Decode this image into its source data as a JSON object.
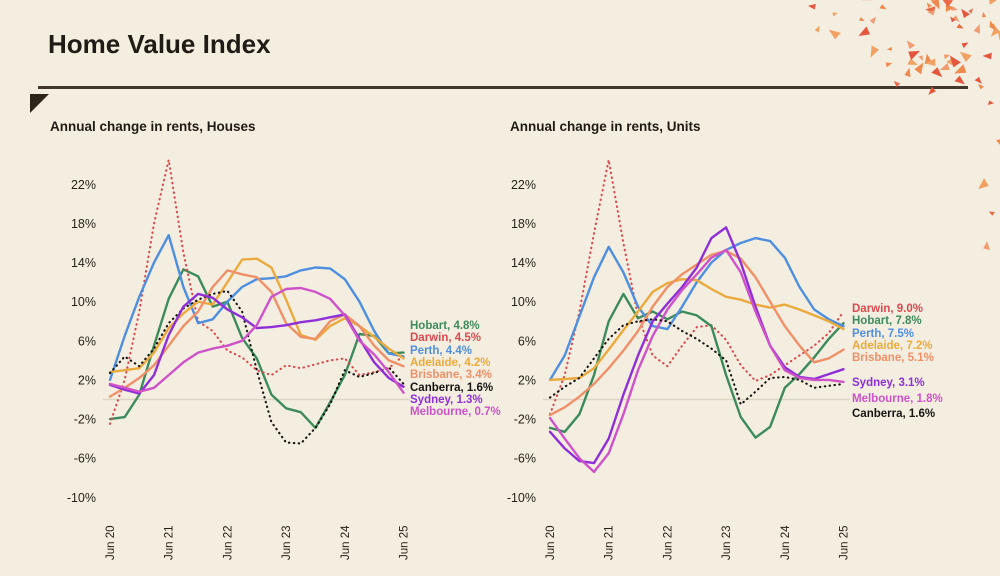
{
  "page": {
    "title": "Home Value Index",
    "background_color": "#f4eee0",
    "accent_rule_color": "#42392c",
    "decor_triangle_colors": [
      "#e4573f",
      "#ef8a4e",
      "#f1a263",
      "#eb6a47",
      "#f19b71"
    ]
  },
  "chart_data": [
    {
      "type": "line",
      "title": "Annual change in rents, Houses",
      "xlabel": "",
      "ylabel": "",
      "ylim": [
        -10.5,
        25.5
      ],
      "yticks": [
        22,
        18,
        14,
        10,
        6,
        2,
        -2,
        -6,
        -10
      ],
      "ytick_suffix": "%",
      "xtick_labels": [
        "Jun 20",
        "Jun 21",
        "Jun 22",
        "Jun 23",
        "Jun 24",
        "Jun 25"
      ],
      "x": [
        "Jun 20",
        "Sep 20",
        "Dec 20",
        "Mar 21",
        "Jun 21",
        "Sep 21",
        "Dec 21",
        "Mar 22",
        "Jun 22",
        "Sep 22",
        "Dec 22",
        "Mar 23",
        "Jun 23",
        "Sep 23",
        "Dec 23",
        "Mar 24",
        "Jun 24",
        "Sep 24",
        "Dec 24",
        "Mar 25",
        "Jun 25"
      ],
      "grid": false,
      "zero_line": true,
      "legend_position": "right-of-plot",
      "series": [
        {
          "name": "Hobart",
          "legend": "Hobart, 4.8%",
          "final_value": 4.8,
          "color": "#3d8b5d",
          "dashed": false,
          "legend_group": 0,
          "values": [
            -2.0,
            -1.8,
            0.5,
            5.5,
            10.3,
            13.3,
            12.6,
            9.5,
            10.0,
            6.3,
            4.2,
            0.5,
            -0.9,
            -1.3,
            -2.9,
            -0.3,
            2.5,
            6.7,
            6.5,
            4.7,
            4.8
          ]
        },
        {
          "name": "Darwin",
          "legend": "Darwin, 4.5%",
          "final_value": 4.5,
          "color": "#d94a50",
          "dashed": true,
          "legend_group": 0,
          "values": [
            -2.5,
            2.0,
            9.0,
            18.0,
            24.5,
            15.0,
            8.0,
            7.0,
            5.0,
            4.3,
            3.0,
            2.5,
            3.5,
            3.2,
            3.6,
            4.0,
            4.2,
            2.5,
            2.8,
            3.2,
            4.5
          ]
        },
        {
          "name": "Perth",
          "legend": "Perth, 4.4%",
          "final_value": 4.4,
          "color": "#4e8fdf",
          "dashed": false,
          "legend_group": 0,
          "values": [
            2.0,
            6.5,
            10.5,
            14.0,
            16.8,
            11.5,
            7.8,
            8.2,
            10.0,
            11.5,
            12.3,
            12.4,
            12.6,
            13.2,
            13.5,
            13.4,
            12.3,
            10.0,
            7.0,
            4.7,
            4.4
          ]
        },
        {
          "name": "Adelaide",
          "legend": "Adelaide, 4.2%",
          "final_value": 4.2,
          "color": "#eaaa3e",
          "dashed": false,
          "legend_group": 0,
          "values": [
            2.8,
            3.0,
            3.2,
            4.8,
            7.3,
            8.8,
            10.0,
            9.7,
            12.0,
            14.3,
            14.4,
            13.5,
            10.2,
            6.6,
            6.1,
            7.5,
            8.3,
            7.5,
            6.4,
            5.2,
            4.2
          ]
        },
        {
          "name": "Brisbane",
          "legend": "Brisbane, 3.4%",
          "final_value": 3.4,
          "color": "#f09068",
          "dashed": false,
          "legend_group": 0,
          "values": [
            0.3,
            1.2,
            2.2,
            3.5,
            5.5,
            7.5,
            9.0,
            11.5,
            13.2,
            12.8,
            12.5,
            11.0,
            7.8,
            6.4,
            6.2,
            8.0,
            8.7,
            7.5,
            5.5,
            4.0,
            3.4
          ]
        },
        {
          "name": "Canberra",
          "legend": "Canberra, 1.6%",
          "final_value": 1.6,
          "color": "#171412",
          "dashed": true,
          "legend_group": 0,
          "values": [
            2.7,
            4.4,
            3.4,
            5.2,
            7.8,
            9.3,
            10.2,
            10.8,
            11.1,
            9.0,
            3.0,
            -2.3,
            -4.4,
            -4.5,
            -2.9,
            -0.5,
            3.0,
            2.3,
            2.7,
            3.3,
            1.6
          ]
        },
        {
          "name": "Sydney",
          "legend": "Sydney, 1.3%",
          "final_value": 1.3,
          "color": "#8e2fd8",
          "dashed": false,
          "legend_group": 0,
          "values": [
            1.5,
            1.0,
            0.6,
            2.5,
            6.6,
            9.5,
            10.8,
            10.4,
            9.2,
            8.4,
            7.3,
            7.4,
            7.6,
            7.9,
            8.1,
            8.4,
            8.7,
            6.2,
            3.8,
            2.2,
            1.3
          ]
        },
        {
          "name": "Melbourne",
          "legend": "Melbourne, 0.7%",
          "final_value": 0.7,
          "color": "#ce52c8",
          "dashed": false,
          "legend_group": 0,
          "values": [
            1.6,
            1.2,
            0.8,
            1.2,
            2.5,
            3.8,
            4.8,
            5.2,
            5.5,
            6.0,
            7.6,
            10.5,
            11.3,
            11.4,
            11.0,
            10.3,
            8.6,
            6.0,
            4.6,
            2.8,
            0.7
          ]
        }
      ]
    },
    {
      "type": "line",
      "title": "Annual change in rents, Units",
      "xlabel": "",
      "ylabel": "",
      "ylim": [
        -10.5,
        25.5
      ],
      "yticks": [
        22,
        18,
        14,
        10,
        6,
        2,
        -2,
        -6,
        -10
      ],
      "ytick_suffix": "%",
      "xtick_labels": [
        "Jun 20",
        "Jun 21",
        "Jun 22",
        "Jun 23",
        "Jun 24",
        "Jun 25"
      ],
      "x": [
        "Jun 20",
        "Sep 20",
        "Dec 20",
        "Mar 21",
        "Jun 21",
        "Sep 21",
        "Dec 21",
        "Mar 22",
        "Jun 22",
        "Sep 22",
        "Dec 22",
        "Mar 23",
        "Jun 23",
        "Sep 23",
        "Dec 23",
        "Mar 24",
        "Jun 24",
        "Sep 24",
        "Dec 24",
        "Mar 25",
        "Jun 25"
      ],
      "grid": false,
      "zero_line": true,
      "legend_position": "right-of-plot",
      "series": [
        {
          "name": "Darwin",
          "legend": "Darwin, 9.0%",
          "final_value": 9.0,
          "color": "#d94a50",
          "dashed": true,
          "legend_group": 0,
          "values": [
            -1.5,
            2.5,
            9.0,
            17.0,
            24.5,
            16.0,
            8.5,
            4.5,
            3.4,
            5.5,
            7.4,
            7.6,
            6.1,
            3.5,
            1.9,
            2.5,
            3.5,
            4.5,
            5.5,
            6.8,
            9.0
          ]
        },
        {
          "name": "Hobart",
          "legend": "Hobart, 7.8%",
          "final_value": 7.8,
          "color": "#3d8b5d",
          "dashed": false,
          "legend_group": 0,
          "values": [
            -2.9,
            -3.3,
            -1.5,
            2.5,
            8.0,
            10.8,
            8.3,
            9.0,
            8.2,
            9.0,
            8.6,
            7.5,
            2.5,
            -1.8,
            -3.9,
            -2.8,
            1.2,
            2.6,
            4.3,
            6.2,
            7.8
          ]
        },
        {
          "name": "Perth",
          "legend": "Perth, 7.5%",
          "final_value": 7.5,
          "color": "#4e8fdf",
          "dashed": false,
          "legend_group": 0,
          "values": [
            2.0,
            4.5,
            8.5,
            12.5,
            15.6,
            13.0,
            9.5,
            7.5,
            7.2,
            9.5,
            12.0,
            14.0,
            15.3,
            16.0,
            16.5,
            16.2,
            14.5,
            11.5,
            9.2,
            8.2,
            7.5
          ]
        },
        {
          "name": "Adelaide",
          "legend": "Adelaide, 7.2%",
          "final_value": 7.2,
          "color": "#eaaa3e",
          "dashed": false,
          "legend_group": 0,
          "values": [
            2.0,
            2.1,
            2.2,
            3.2,
            5.1,
            7.1,
            9.0,
            11.0,
            11.9,
            12.3,
            12.2,
            11.3,
            10.5,
            10.2,
            9.7,
            9.4,
            9.7,
            9.2,
            8.6,
            8.0,
            7.2
          ]
        },
        {
          "name": "Brisbane",
          "legend": "Brisbane, 5.1%",
          "final_value": 5.1,
          "color": "#f09068",
          "dashed": false,
          "legend_group": 0,
          "values": [
            -1.6,
            -0.8,
            0.3,
            1.6,
            3.2,
            5.0,
            7.0,
            9.5,
            11.5,
            12.8,
            13.8,
            14.8,
            15.2,
            14.4,
            12.5,
            10.0,
            7.5,
            5.5,
            3.8,
            4.2,
            5.1
          ]
        },
        {
          "name": "Sydney",
          "legend": "Sydney, 3.1%",
          "final_value": 3.1,
          "color": "#8e2fd8",
          "dashed": false,
          "legend_group": 1,
          "values": [
            -3.3,
            -5.0,
            -6.3,
            -6.5,
            -4.0,
            0.5,
            4.5,
            8.0,
            9.8,
            11.5,
            13.5,
            16.5,
            17.6,
            14.0,
            9.5,
            5.5,
            3.3,
            2.3,
            2.1,
            2.6,
            3.1
          ]
        },
        {
          "name": "Melbourne",
          "legend": "Melbourne, 1.8%",
          "final_value": 1.8,
          "color": "#ce52c8",
          "dashed": false,
          "legend_group": 1,
          "values": [
            -1.9,
            -4.0,
            -6.0,
            -7.4,
            -5.5,
            -1.5,
            3.0,
            6.5,
            9.2,
            11.2,
            12.8,
            14.5,
            15.3,
            13.0,
            9.0,
            5.5,
            3.0,
            2.2,
            2.0,
            2.0,
            1.8
          ]
        },
        {
          "name": "Canberra",
          "legend": "Canberra, 1.6%",
          "final_value": 1.6,
          "color": "#171412",
          "dashed": true,
          "legend_group": 1,
          "values": [
            0.2,
            1.3,
            2.2,
            4.2,
            6.2,
            7.6,
            8.0,
            8.2,
            8.0,
            7.0,
            6.2,
            5.2,
            4.0,
            -0.5,
            0.8,
            2.2,
            2.3,
            2.0,
            1.2,
            1.4,
            1.6
          ]
        }
      ]
    }
  ]
}
